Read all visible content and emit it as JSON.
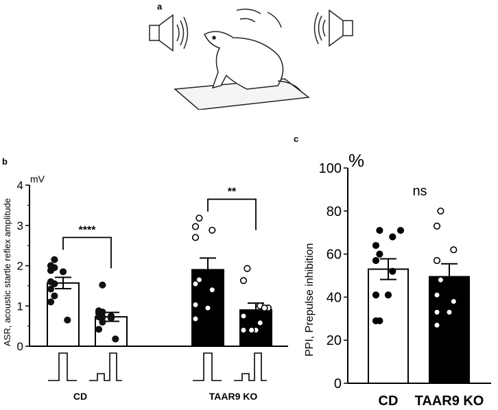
{
  "panel_labels": {
    "a": "a",
    "b": "b",
    "c": "c"
  },
  "chart_data": [
    {
      "type": "bar",
      "panel": "b",
      "ylabel": "ASR, acoustic startle reflex amplitude",
      "unit": "mV",
      "ylim": [
        0,
        4
      ],
      "yticks": [
        "0",
        "1",
        "2",
        "3",
        "4"
      ],
      "group_labels": [
        "CD",
        "TAAR9 KO"
      ],
      "x_icons": [
        "pulse",
        "prepulse-pulse",
        "pulse",
        "prepulse-pulse"
      ],
      "bar_colors": [
        "#ffffff",
        "#ffffff",
        "#000000",
        "#000000"
      ],
      "bars": [
        {
          "group": "CD",
          "condition": "pulse",
          "mean": 1.57,
          "sem": 0.14,
          "points": [
            2.15,
            2.0,
            1.95,
            1.88,
            1.85,
            1.6,
            1.55,
            1.42,
            1.25,
            1.1,
            0.65
          ]
        },
        {
          "group": "CD",
          "condition": "prepulse-pulse",
          "mean": 0.73,
          "sem": 0.11,
          "points": [
            1.52,
            0.88,
            0.85,
            0.82,
            0.75,
            0.73,
            0.72,
            0.7,
            0.6,
            0.42,
            0.18
          ]
        },
        {
          "group": "TAAR9 KO",
          "condition": "pulse",
          "mean": 1.9,
          "sem": 0.29,
          "points": [
            3.18,
            2.97,
            2.88,
            2.7,
            1.65,
            1.55,
            1.4,
            1.03,
            0.95,
            0.68
          ]
        },
        {
          "group": "TAAR9 KO",
          "condition": "prepulse-pulse",
          "mean": 0.9,
          "sem": 0.17,
          "points": [
            1.93,
            1.63,
            1.0,
            0.95,
            0.95,
            0.75,
            0.58,
            0.4,
            0.4,
            0.4
          ]
        }
      ],
      "significance": [
        {
          "between": [
            0,
            1
          ],
          "label": "****",
          "y": 2.7
        },
        {
          "between": [
            2,
            3
          ],
          "label": "**",
          "y": 3.65
        }
      ]
    },
    {
      "type": "bar",
      "panel": "c",
      "ylabel": "PPI, Prepulse inhibition",
      "unit": "%",
      "ylim": [
        0,
        100
      ],
      "yticks": [
        "0",
        "20",
        "40",
        "60",
        "80",
        "100"
      ],
      "categories": [
        "CD",
        "TAAR9 KO"
      ],
      "bar_colors": [
        "#ffffff",
        "#000000"
      ],
      "bars": [
        {
          "group": "CD",
          "mean": 53,
          "sem": 4.8,
          "points": [
            71,
            71,
            68,
            64,
            60,
            57,
            52,
            41,
            41,
            29,
            29
          ]
        },
        {
          "group": "TAAR9 KO",
          "mean": 49.5,
          "sem": 6,
          "points": [
            80,
            73,
            62,
            57,
            48,
            41,
            38,
            33,
            33,
            27
          ]
        }
      ],
      "significance": [
        {
          "between": [
            0,
            1
          ],
          "label": "ns"
        }
      ]
    }
  ]
}
